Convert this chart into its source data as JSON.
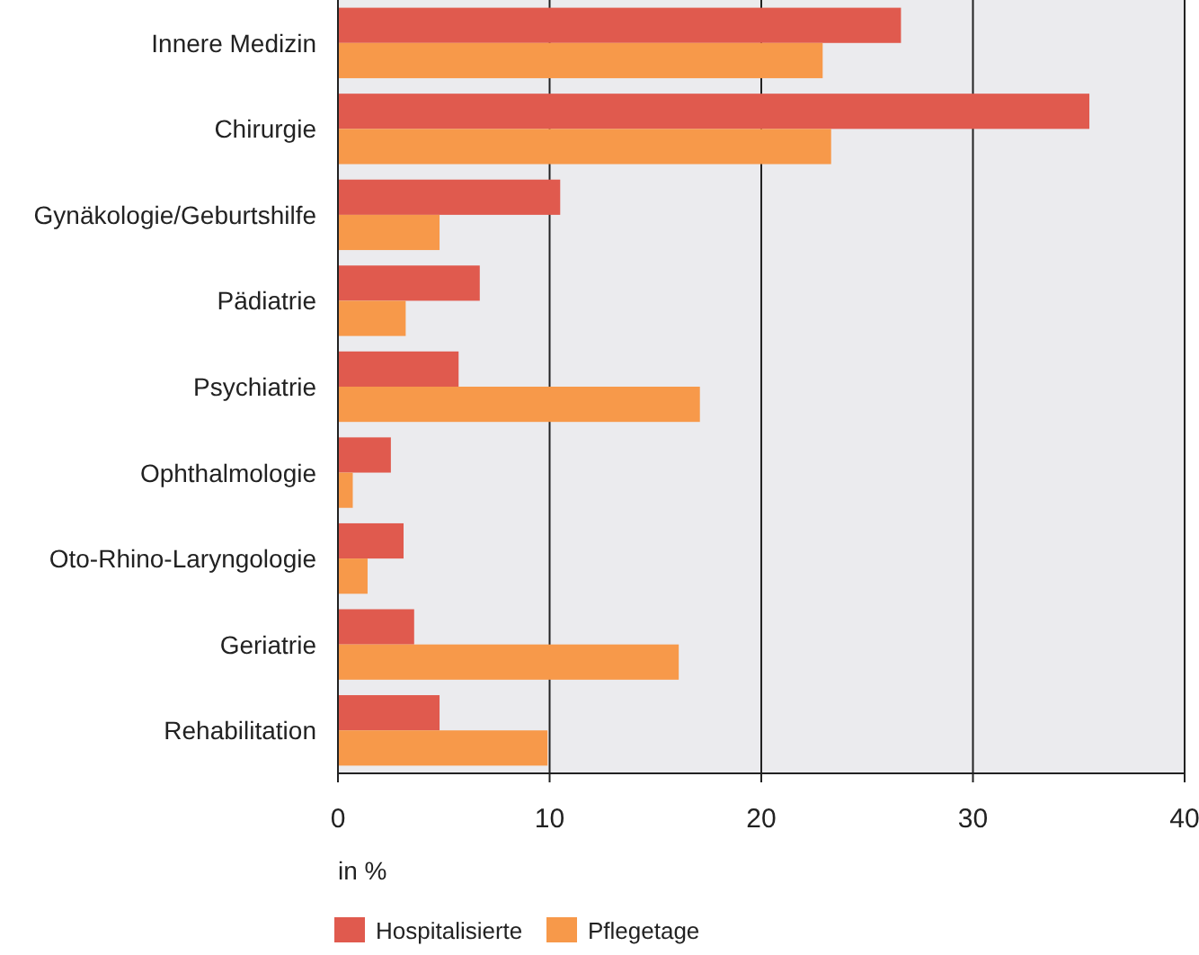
{
  "chart_data": {
    "type": "bar",
    "orientation": "horizontal",
    "xlabel": "in %",
    "categories": [
      "Innere Medizin",
      "Chirurgie",
      "Gynäkologie/Geburtshilfe",
      "Pädiatrie",
      "Psychiatrie",
      "Ophthalmologie",
      "Oto-Rhino-Laryngologie",
      "Geriatrie",
      "Rehabilitation"
    ],
    "series": [
      {
        "name": "Hospitalisierte",
        "color": "#e05a4e",
        "values": [
          26.6,
          35.5,
          10.5,
          6.7,
          5.7,
          2.5,
          3.1,
          3.6,
          4.8
        ]
      },
      {
        "name": "Pflegetage",
        "color": "#f7994a",
        "values": [
          22.9,
          23.3,
          4.8,
          3.2,
          17.1,
          0.7,
          1.4,
          16.1,
          9.9
        ]
      }
    ],
    "xlim": [
      0,
      40
    ],
    "xticks": [
      0,
      10,
      20,
      30,
      40
    ],
    "grid": "x",
    "legend": "bottom"
  }
}
